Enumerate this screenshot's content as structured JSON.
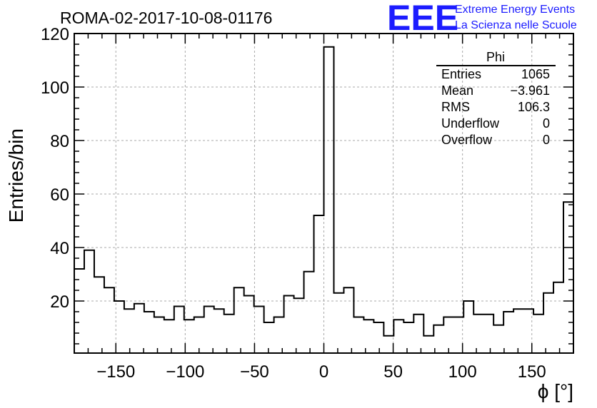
{
  "chart_data": {
    "type": "bar",
    "title": "ROMA-02-2017-10-08-01176",
    "xlabel": "ϕ [°]",
    "ylabel": "Entries/bin",
    "xlim": [
      -180,
      180
    ],
    "ylim": [
      0,
      120
    ],
    "x_ticks": [
      -150,
      -100,
      -50,
      0,
      50,
      100,
      150
    ],
    "y_ticks": [
      20,
      40,
      60,
      80,
      100,
      120
    ],
    "grid": true,
    "bin_width": 7.2,
    "values": [
      32,
      39,
      29,
      25,
      20,
      17,
      19,
      16,
      14,
      13,
      18,
      13,
      14,
      18,
      17,
      15,
      25,
      22,
      18,
      12,
      14,
      22,
      21,
      31,
      52,
      115,
      23,
      25,
      14,
      13,
      12,
      7,
      13,
      12,
      15,
      7,
      11,
      14,
      14,
      20,
      15,
      15,
      11,
      16,
      17,
      17,
      15,
      23,
      27,
      57
    ],
    "stats": {
      "name": "Phi",
      "rows": [
        {
          "label": "Entries",
          "value": "1065"
        },
        {
          "label": "Mean",
          "value": "−3.961"
        },
        {
          "label": "RMS",
          "value": "106.3"
        },
        {
          "label": "Underflow",
          "value": "0"
        },
        {
          "label": "Overflow",
          "value": "0"
        }
      ]
    }
  },
  "logo": {
    "mark": "EEE",
    "line1": "Extreme Energy Events",
    "line2": "La Scienza nelle Scuole",
    "color": "#1c1cff"
  }
}
